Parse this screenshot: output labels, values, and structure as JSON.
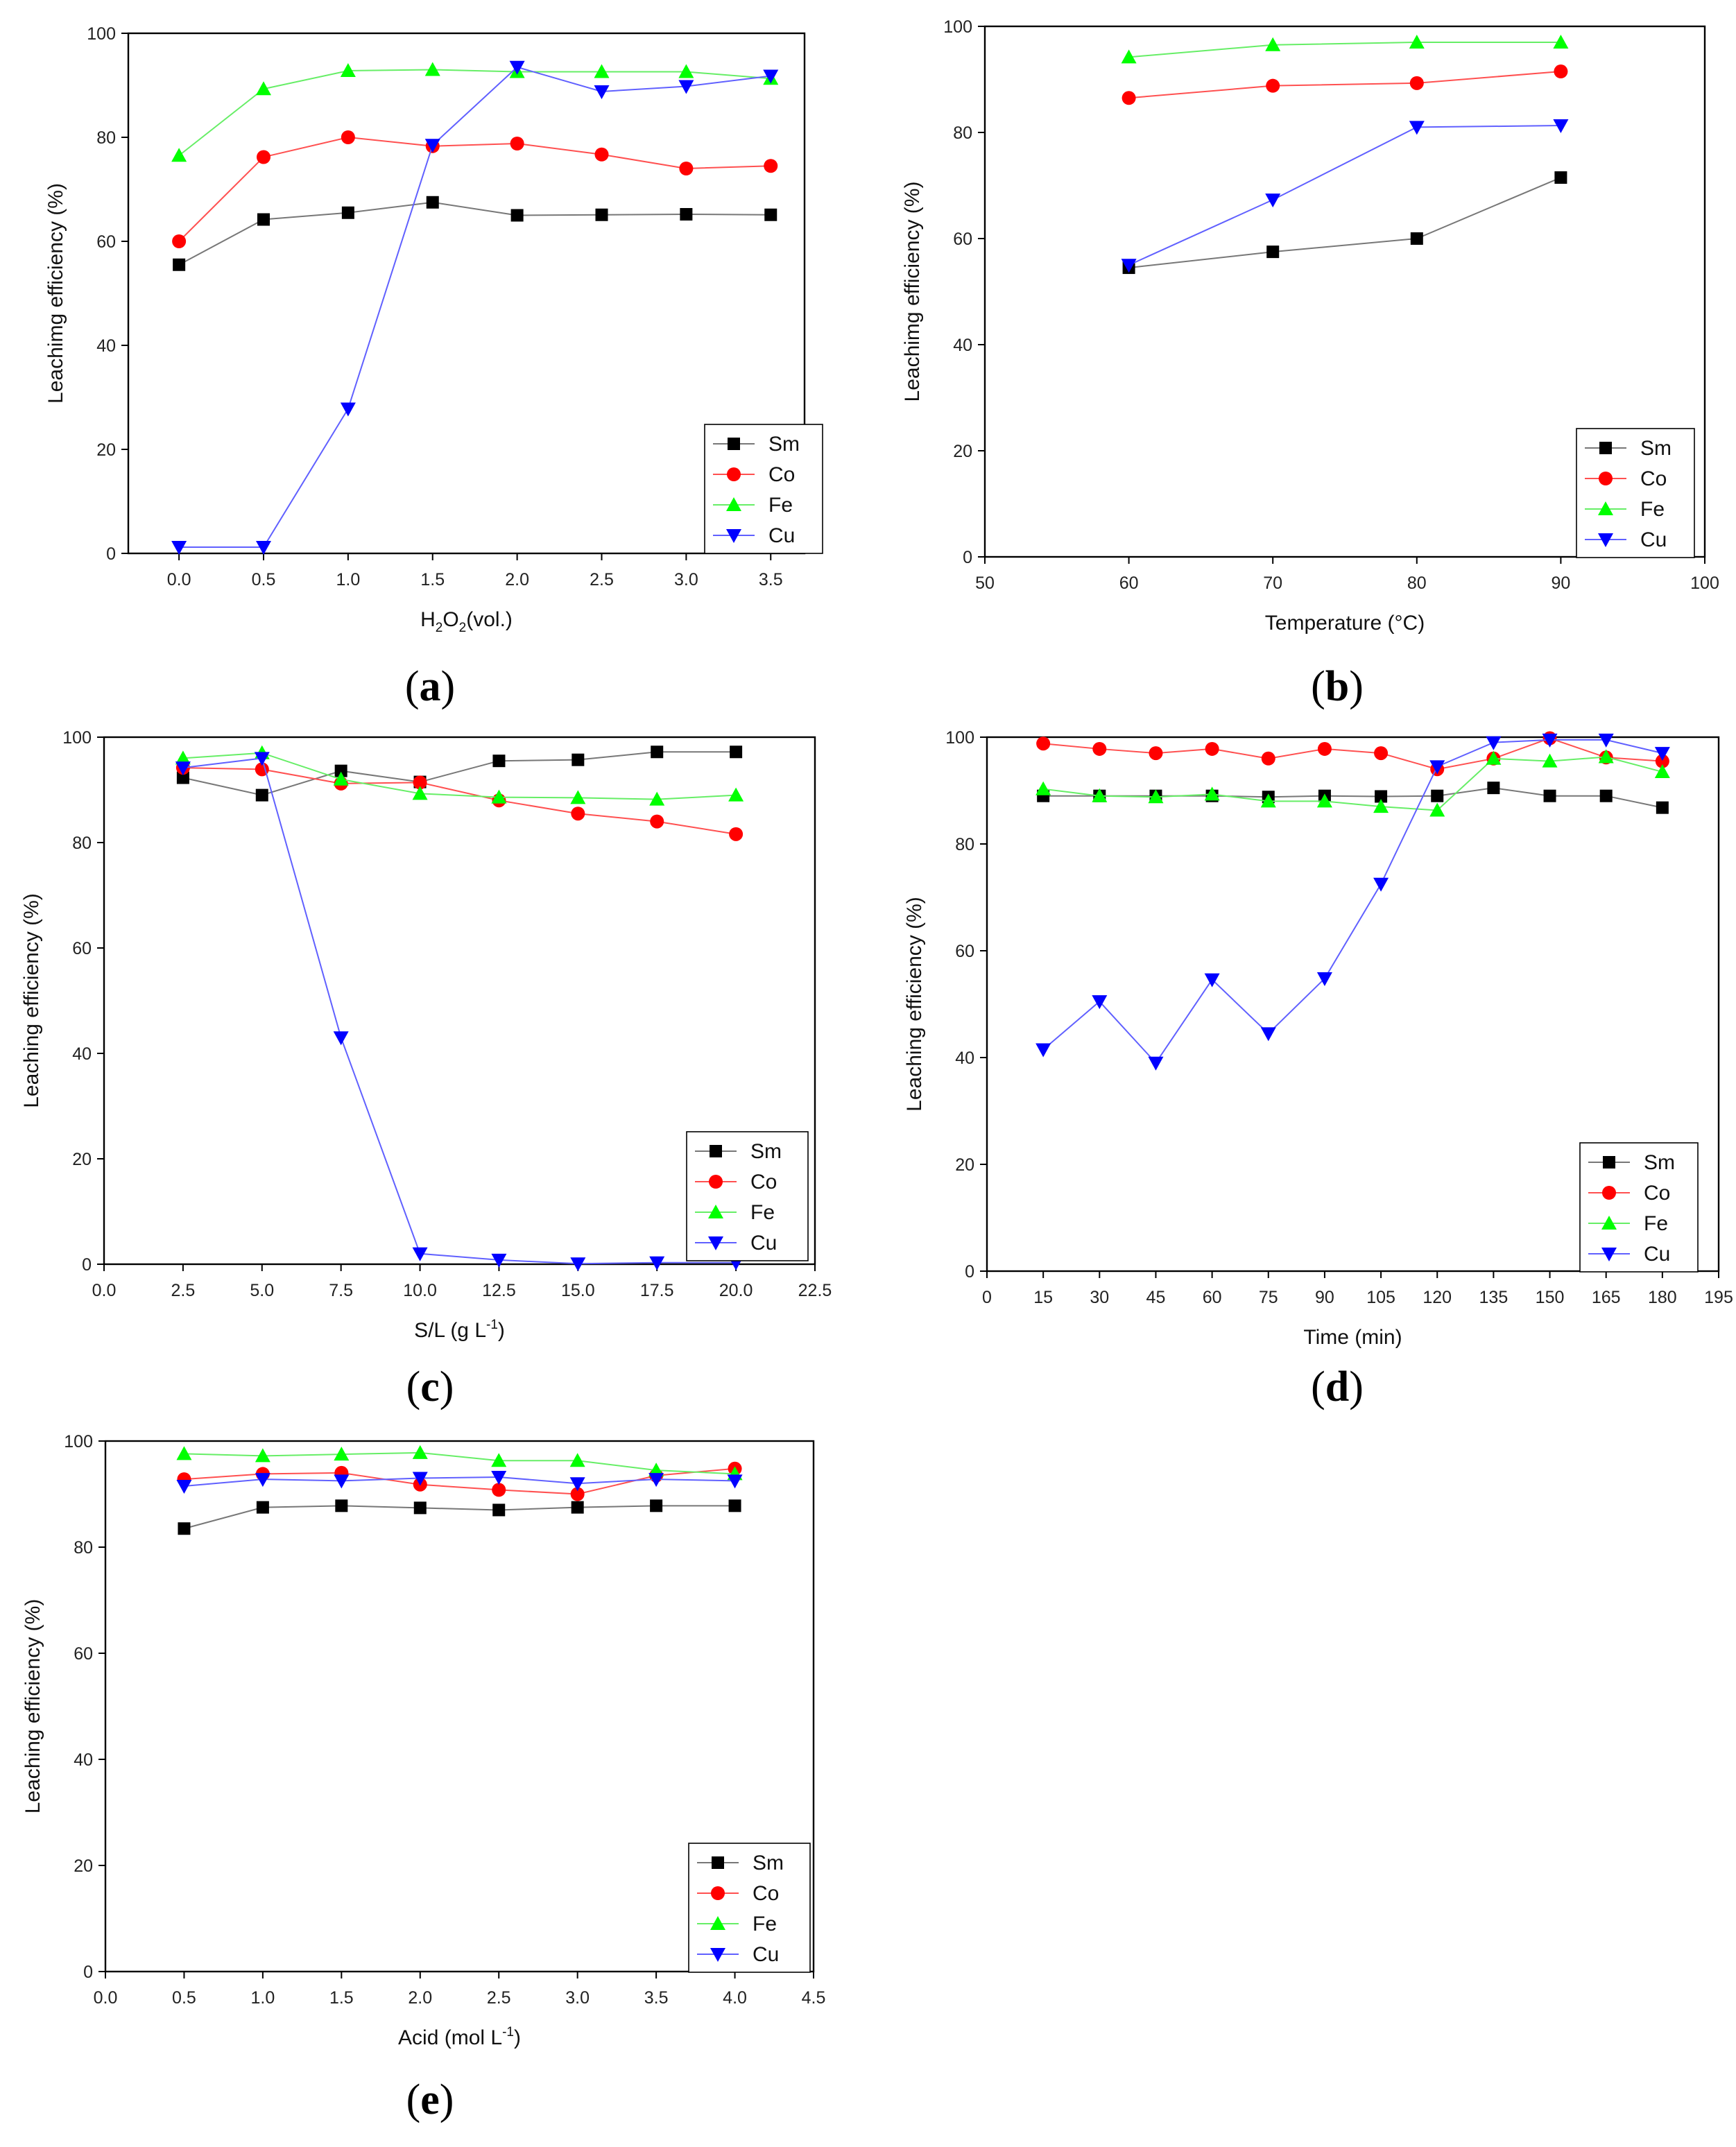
{
  "chart_data": [
    {
      "id": "a",
      "type": "line",
      "panel_label": "a",
      "xlabel": "H2O2(vol.)",
      "ylabel": "Leachimg efficiency (%)",
      "xlim": [
        -0.3,
        3.7
      ],
      "ylim": [
        0,
        100
      ],
      "xticks": [
        0.0,
        0.5,
        1.0,
        1.5,
        2.0,
        2.5,
        3.0,
        3.5
      ],
      "xtick_labels": [
        "0.0",
        "0.5",
        "1.0",
        "1.5",
        "2.0",
        "2.5",
        "3.0",
        "3.5"
      ],
      "yticks": [
        0,
        20,
        40,
        60,
        80,
        100
      ],
      "legend_position": "bottom-right",
      "x": [
        0.0,
        0.5,
        1.0,
        1.5,
        2.0,
        2.5,
        3.0,
        3.5
      ],
      "series": [
        {
          "name": "Sm",
          "values": [
            55.5,
            64.2,
            65.5,
            67.5,
            65.0,
            65.1,
            65.2,
            65.1
          ]
        },
        {
          "name": "Co",
          "values": [
            60.0,
            76.2,
            80.0,
            78.3,
            78.8,
            76.7,
            74.0,
            74.5
          ]
        },
        {
          "name": "Fe",
          "values": [
            76.5,
            89.3,
            92.8,
            93.0,
            92.6,
            92.6,
            92.6,
            91.3
          ]
        },
        {
          "name": "Cu",
          "values": [
            1.2,
            1.2,
            27.8,
            78.5,
            93.5,
            88.8,
            89.8,
            91.8
          ]
        }
      ]
    },
    {
      "id": "b",
      "type": "line",
      "panel_label": "b",
      "xlabel": "Temperature (°C)",
      "ylabel": "Leachimg efficiency (%)",
      "xlim": [
        50,
        100
      ],
      "ylim": [
        0,
        100
      ],
      "xticks": [
        50,
        60,
        70,
        80,
        90,
        100
      ],
      "xtick_labels": [
        "50",
        "60",
        "70",
        "80",
        "90",
        "100"
      ],
      "yticks": [
        0,
        20,
        40,
        60,
        80,
        100
      ],
      "legend_position": "bottom-right",
      "x": [
        60,
        70,
        80,
        90
      ],
      "series": [
        {
          "name": "Sm",
          "values": [
            54.5,
            57.5,
            60.0,
            71.5
          ]
        },
        {
          "name": "Co",
          "values": [
            86.5,
            88.8,
            89.3,
            91.5
          ]
        },
        {
          "name": "Fe",
          "values": [
            94.2,
            96.5,
            97.0,
            97.0
          ]
        },
        {
          "name": "Cu",
          "values": [
            55.0,
            67.3,
            81.0,
            81.3
          ]
        }
      ]
    },
    {
      "id": "c",
      "type": "line",
      "panel_label": "c",
      "xlabel": "S/L (g L-1)",
      "ylabel": "Leaching efficiency (%)",
      "xlim": [
        0,
        22.5
      ],
      "ylim": [
        0,
        100
      ],
      "xticks": [
        0.0,
        2.5,
        5.0,
        7.5,
        10.0,
        12.5,
        15.0,
        17.5,
        20.0,
        22.5
      ],
      "xtick_labels": [
        "0.0",
        "2.5",
        "5.0",
        "7.5",
        "10.0",
        "12.5",
        "15.0",
        "17.5",
        "20.0",
        "22.5"
      ],
      "yticks": [
        0,
        20,
        40,
        60,
        80,
        100
      ],
      "legend_position": "bottom-right",
      "x": [
        2.5,
        5.0,
        7.5,
        10.0,
        12.5,
        15.0,
        17.5,
        20.0
      ],
      "series": [
        {
          "name": "Sm",
          "values": [
            92.3,
            89.0,
            93.6,
            91.5,
            95.5,
            95.7,
            97.2,
            97.2
          ]
        },
        {
          "name": "Co",
          "values": [
            94.2,
            93.9,
            91.2,
            91.4,
            88.0,
            85.5,
            84.0,
            81.6
          ]
        },
        {
          "name": "Fe",
          "values": [
            96.0,
            97.0,
            92.0,
            89.3,
            88.6,
            88.5,
            88.2,
            89.0
          ]
        },
        {
          "name": "Cu",
          "values": [
            94.2,
            96.0,
            43.0,
            2.0,
            0.8,
            0.1,
            0.3,
            0.3
          ]
        }
      ]
    },
    {
      "id": "d",
      "type": "line",
      "panel_label": "d",
      "xlabel": "Time (min)",
      "ylabel": "Leaching efficiency (%)",
      "xlim": [
        0,
        195
      ],
      "ylim": [
        0,
        100
      ],
      "xticks": [
        0,
        15,
        30,
        45,
        60,
        75,
        90,
        105,
        120,
        135,
        150,
        165,
        180,
        195
      ],
      "xtick_labels": [
        "0",
        "15",
        "30",
        "45",
        "60",
        "75",
        "90",
        "105",
        "120",
        "135",
        "150",
        "165",
        "180",
        "195"
      ],
      "yticks": [
        0,
        20,
        40,
        60,
        80,
        100
      ],
      "legend_position": "bottom-right",
      "x": [
        15,
        30,
        45,
        60,
        75,
        90,
        105,
        120,
        135,
        150,
        165,
        180
      ],
      "series": [
        {
          "name": "Sm",
          "values": [
            89.0,
            89.0,
            89.0,
            89.0,
            88.8,
            89.0,
            88.9,
            89.0,
            90.5,
            89.0,
            89.0,
            86.8
          ]
        },
        {
          "name": "Co",
          "values": [
            98.8,
            97.8,
            97.0,
            97.8,
            96.0,
            97.8,
            97.0,
            94.0,
            96.0,
            99.8,
            96.2,
            95.5
          ]
        },
        {
          "name": "Fe",
          "values": [
            90.3,
            89.0,
            88.8,
            89.3,
            88.0,
            88.0,
            87.0,
            86.3,
            96.0,
            95.5,
            96.3,
            93.5
          ]
        },
        {
          "name": "Cu",
          "values": [
            41.5,
            50.5,
            39.0,
            54.6,
            44.5,
            54.8,
            72.5,
            94.5,
            99.0,
            99.5,
            99.5,
            97.0
          ]
        }
      ]
    },
    {
      "id": "e",
      "type": "line",
      "panel_label": "e",
      "xlabel": "Acid (mol L-1)",
      "ylabel": "Leaching efficiency (%)",
      "xlim": [
        0,
        4.5
      ],
      "ylim": [
        0,
        100
      ],
      "xticks": [
        0.0,
        0.5,
        1.0,
        1.5,
        2.0,
        2.5,
        3.0,
        3.5,
        4.0,
        4.5
      ],
      "xtick_labels": [
        "0.0",
        "0.5",
        "1.0",
        "1.5",
        "2.0",
        "2.5",
        "3.0",
        "3.5",
        "4.0",
        "4.5"
      ],
      "yticks": [
        0,
        20,
        40,
        60,
        80,
        100
      ],
      "legend_position": "bottom-right",
      "x": [
        0.5,
        1.0,
        1.5,
        2.0,
        2.5,
        3.0,
        3.5,
        4.0
      ],
      "series": [
        {
          "name": "Sm",
          "values": [
            83.5,
            87.5,
            87.8,
            87.4,
            87.0,
            87.5,
            87.8,
            87.8
          ]
        },
        {
          "name": "Co",
          "values": [
            92.8,
            93.8,
            94.0,
            91.8,
            90.8,
            90.0,
            93.5,
            94.8
          ]
        },
        {
          "name": "Fe",
          "values": [
            97.6,
            97.2,
            97.5,
            97.8,
            96.3,
            96.3,
            94.5,
            93.8
          ]
        },
        {
          "name": "Cu",
          "values": [
            91.5,
            92.8,
            92.5,
            93.0,
            93.2,
            92.0,
            92.8,
            92.5
          ]
        }
      ]
    }
  ],
  "series_styles": {
    "Sm": {
      "line_color": "#777777",
      "marker_color": "#000000",
      "marker": "square"
    },
    "Co": {
      "line_color": "#ff5050",
      "marker_color": "#ff0000",
      "marker": "circle"
    },
    "Fe": {
      "line_color": "#66ee66",
      "marker_color": "#00ff00",
      "marker": "triangle-up"
    },
    "Cu": {
      "line_color": "#6060ff",
      "marker_color": "#0000ff",
      "marker": "triangle-down"
    }
  }
}
